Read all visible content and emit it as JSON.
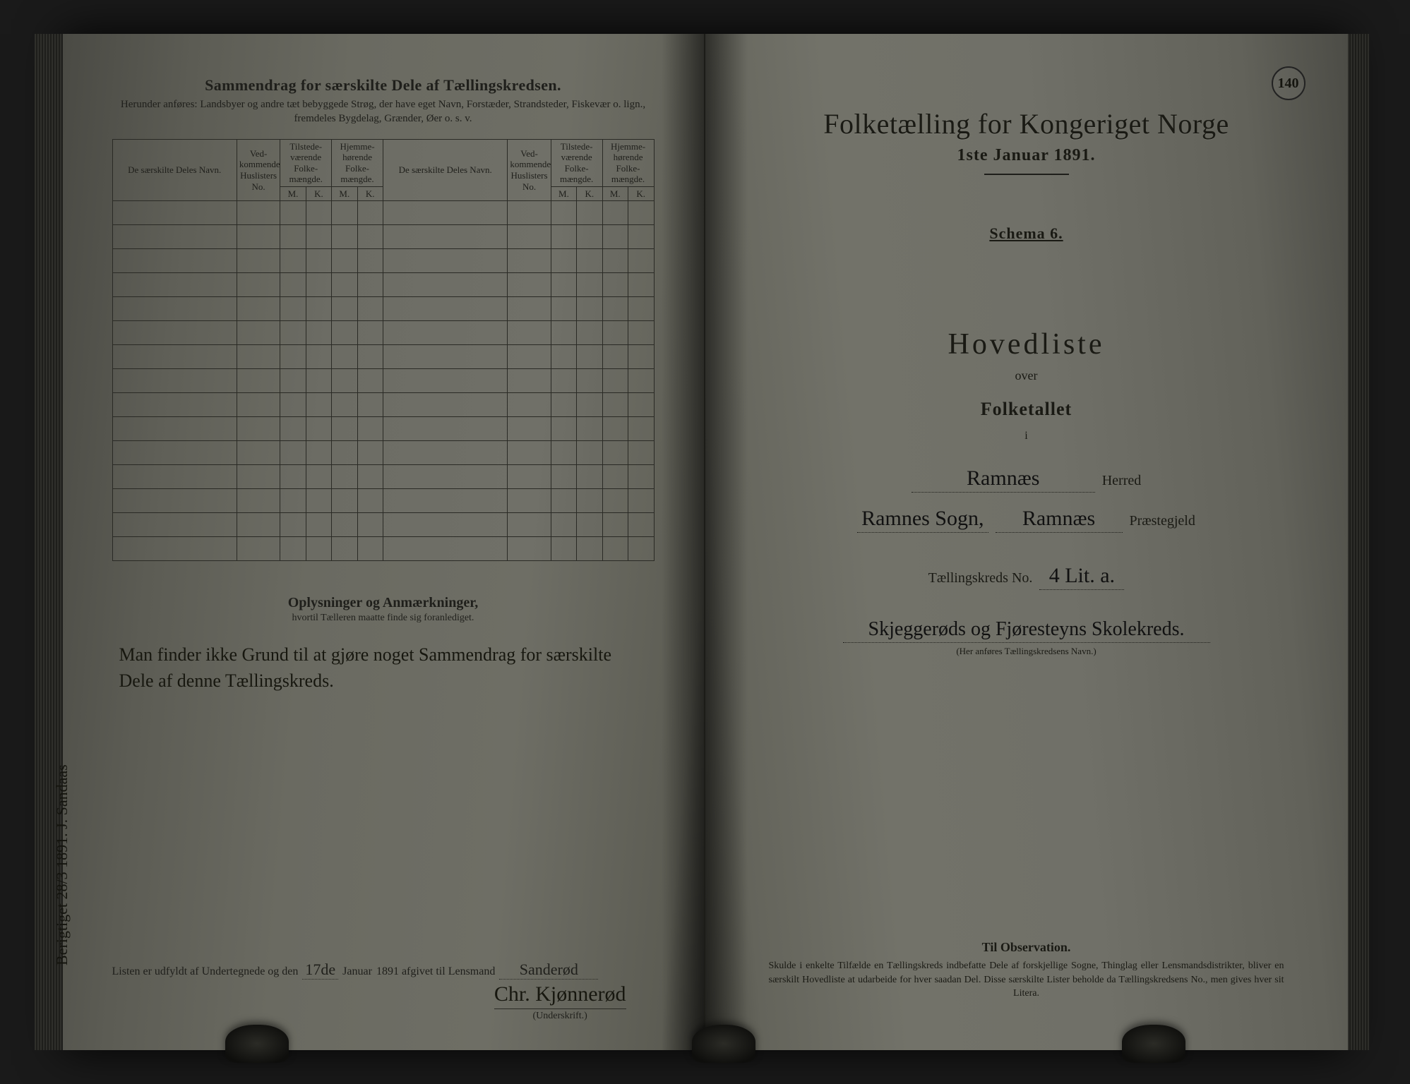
{
  "page_stamp": "140",
  "left": {
    "summary_title": "Sammendrag for særskilte Dele af Tællingskredsen.",
    "summary_sub": "Herunder anføres: Landsbyer og andre tæt bebyggede Strøg, der have eget Navn, Forstæder, Strandsteder, Fiskevær o. lign., fremdeles Bygdelag, Grænder, Øer o. s. v.",
    "table_headers": {
      "name": "De særskilte Deles Navn.",
      "husliste_no": "Ved-\nkommende\nHuslisters\nNo.",
      "tilstede": "Tilstede-\nværende\nFolke-\nmængde.",
      "hjemme": "Hjemme-\nhørende\nFolke-\nmængde.",
      "m": "M.",
      "k": "K."
    },
    "blank_rows": 15,
    "remarks_title": "Oplysninger og Anmærkninger,",
    "remarks_sub": "hvortil Tælleren maatte finde sig foranlediget.",
    "remarks_handwritten": "Man finder ikke Grund til at gjøre noget Sammendrag for særskilte Dele af denne Tællingskreds.",
    "sign_prefix": "Listen er udfyldt af Undertegnede og den",
    "sign_day": "17de",
    "sign_month": "Januar",
    "sign_year_suffix": "1891 afgivet til Lensmand",
    "lensmand": "Sanderød",
    "underskrift_label": "(Underskrift.)",
    "signature": "Chr. Kjønnerød",
    "margin_note": "Berigtiget 28/3 1891.  J. Sandaas"
  },
  "right": {
    "title": "Folketælling for Kongeriget Norge",
    "date": "1ste Januar 1891.",
    "schema": "Schema 6.",
    "hovedliste": "Hovedliste",
    "over": "over",
    "folketallet": "Folketallet",
    "i": "i",
    "herred_value": "Ramnæs",
    "herred_label": "Herred",
    "sogn_value": "Ramnes Sogn,",
    "praestegjeld_value": "Ramnæs",
    "praestegjeld_label": "Præstegjeld",
    "kreds_label_pre": "Tællingskreds No.",
    "kreds_no": "4 Lit. a.",
    "kreds_name": "Skjeggerøds og Fjøresteyns Skolekreds.",
    "kreds_sub": "(Her anføres Tællingskredsens Navn.)",
    "obs_title": "Til Observation.",
    "obs_text": "Skulde i enkelte Tilfælde en Tællingskreds indbefatte Dele af forskjellige Sogne, Thinglag eller Lensmandsdistrikter, bliver en særskilt Hovedliste at udarbeide for hver saadan Del. Disse særskilte Lister beholde da Tællingskredsens No., men gives hver sit Litera."
  }
}
